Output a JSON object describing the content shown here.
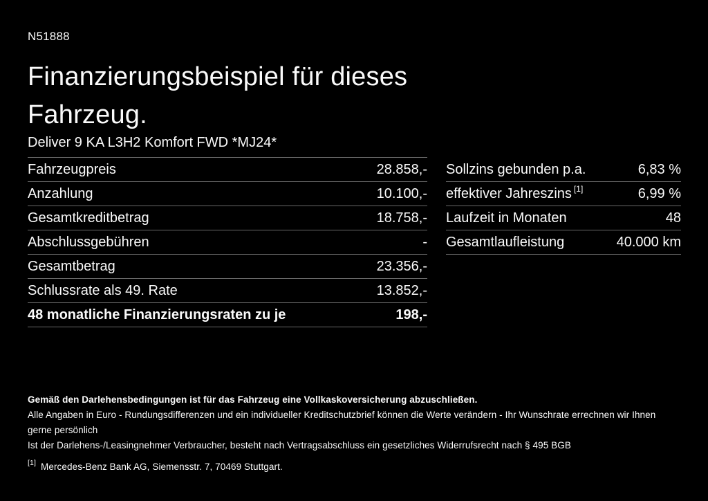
{
  "page": {
    "id_code": "N51888",
    "title": "Finanzierungsbeispiel für dieses Fahrzeug.",
    "vehicle_name": "Deliver 9 KA L3H2 Komfort FWD *MJ24*"
  },
  "colors": {
    "background": "#000000",
    "text": "#fafafa",
    "divider": "#6b6b6b"
  },
  "finance_table": {
    "rows": [
      {
        "label": "Fahrzeugpreis",
        "value": "28.858,-"
      },
      {
        "label": "Anzahlung",
        "value": "10.100,-"
      },
      {
        "label": "Gesamtkreditbetrag",
        "value": "18.758,-"
      },
      {
        "label": "Abschlussgebühren",
        "value": "-"
      },
      {
        "label": "Gesamtbetrag",
        "value": "23.356,-"
      },
      {
        "label": "Schlussrate als 49. Rate",
        "value": "13.852,-"
      },
      {
        "label": "48 monatliche Finanzierungsraten zu je",
        "value": "198,-"
      }
    ]
  },
  "conditions_table": {
    "rows": [
      {
        "label": "Sollzins gebunden p.a.",
        "value": "6,83 %"
      },
      {
        "label": "effektiver Jahreszins",
        "label_sup": "[1]",
        "value": "6,99 %"
      },
      {
        "label": "Laufzeit in Monaten",
        "value": "48"
      },
      {
        "label": "Gesamtlaufleistung",
        "value": "40.000 km"
      }
    ]
  },
  "footer": {
    "insurance_note": "Gemäß den Darlehensbedingungen ist für das Fahrzeug eine Vollkaskoversicherung abzuschließen.",
    "note_line1": "Alle Angaben in Euro - Rundungsdifferenzen und ein individueller Kreditschutzbrief können die Werte verändern - Ihr Wunschrate errechnen wir Ihnen gerne persönlich",
    "note_line2": "Ist der Darlehens-/Leasingnehmer Verbraucher, besteht nach Vertragsabschluss ein gesetzliches Widerrufsrecht nach § 495 BGB",
    "footnote_marker": "[1]",
    "footnote_text": "Mercedes-Benz Bank AG, Siemensstr. 7, 70469 Stuttgart."
  }
}
